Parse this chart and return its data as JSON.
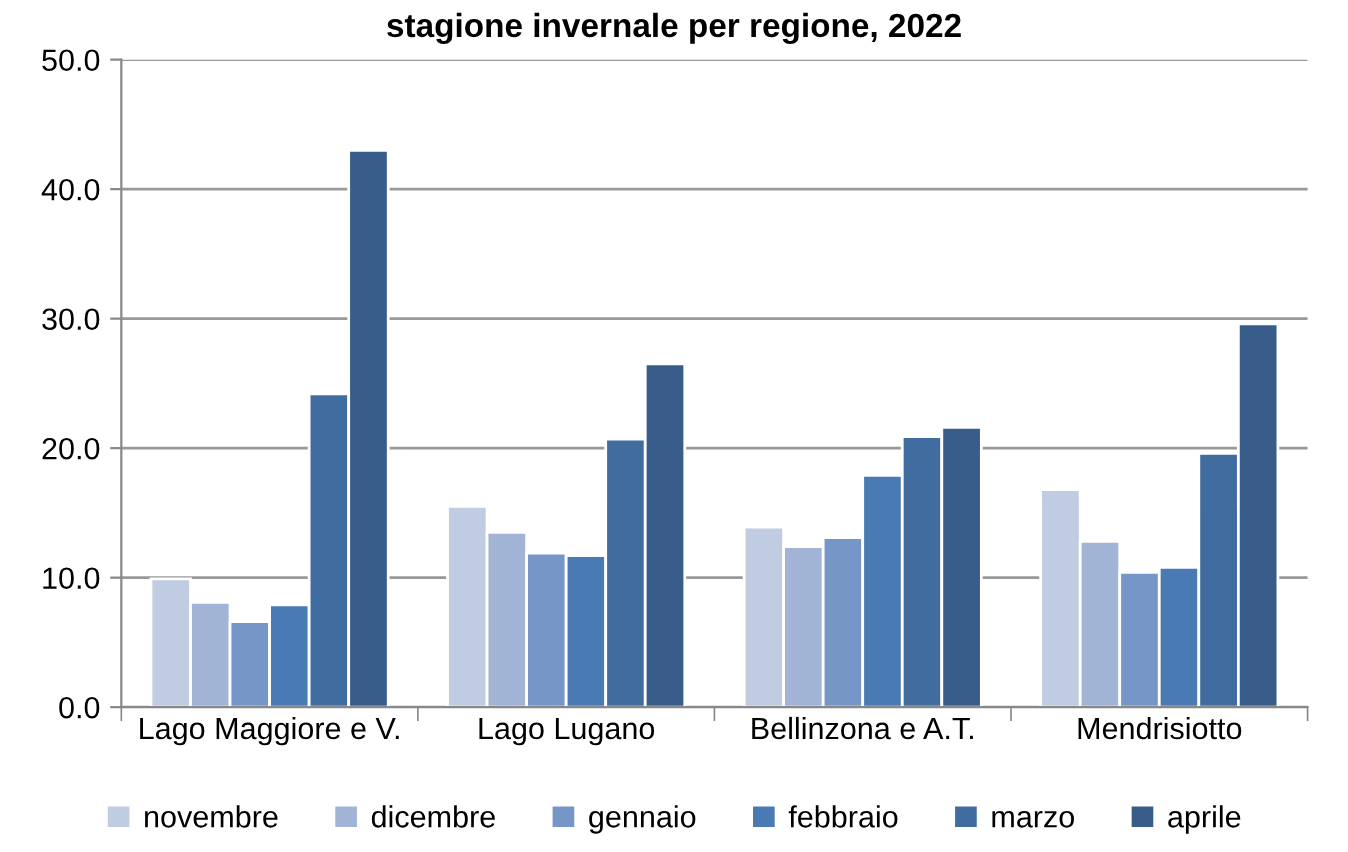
{
  "chart_data": {
    "type": "bar",
    "title": "stagione invernale per regione, 2022",
    "categories": [
      "Lago Maggiore e V.",
      "Lago Lugano",
      "Bellinzona e A.T.",
      "Mendrisiotto"
    ],
    "series": [
      {
        "name": "novembre",
        "color": "#c0cce2",
        "values": [
          9.9,
          15.5,
          13.9,
          16.8
        ]
      },
      {
        "name": "dicembre",
        "color": "#a2b4d6",
        "values": [
          8.1,
          13.5,
          12.4,
          12.8
        ]
      },
      {
        "name": "gennaio",
        "color": "#7596c6",
        "values": [
          6.6,
          11.9,
          13.1,
          10.4
        ]
      },
      {
        "name": "febbraio",
        "color": "#4a7ab3",
        "values": [
          7.9,
          11.7,
          17.9,
          10.8
        ]
      },
      {
        "name": "marzo",
        "color": "#416ca0",
        "values": [
          24.2,
          20.7,
          20.9,
          19.6
        ]
      },
      {
        "name": "aprile",
        "color": "#385d8a",
        "values": [
          43.0,
          26.5,
          21.6,
          29.6
        ]
      }
    ],
    "ylim": [
      0,
      50
    ],
    "yticks": [
      {
        "value": 0,
        "label": "0.0"
      },
      {
        "value": 10,
        "label": "10.0"
      },
      {
        "value": 20,
        "label": "20.0"
      },
      {
        "value": 30,
        "label": "30.0"
      },
      {
        "value": 40,
        "label": "40.0"
      },
      {
        "value": 50,
        "label": "50.0"
      }
    ],
    "grid": "y",
    "legend": "bottom"
  }
}
